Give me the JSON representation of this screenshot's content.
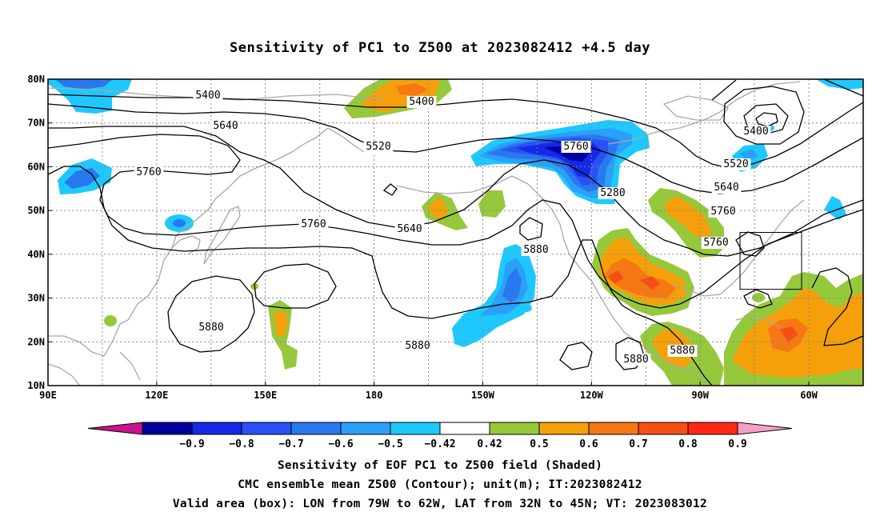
{
  "title": "Sensitivity of PC1 to Z500 at 2023082412 +4.5 day",
  "map": {
    "lon_range_deg_east": [
      90,
      315
    ],
    "lat_range": [
      10,
      80
    ],
    "lat_labels": [
      "80N",
      "70N",
      "60N",
      "50N",
      "40N",
      "30N",
      "20N",
      "10N"
    ],
    "lon_labels": [
      "90E",
      "120E",
      "150E",
      "180",
      "150W",
      "120W",
      "90W",
      "60W"
    ],
    "contour_labels": [
      "5400",
      "5400",
      "5640",
      "5520",
      "5760",
      "5760",
      "5760",
      "5880",
      "5280",
      "5400",
      "5520",
      "5640",
      "5760",
      "5640",
      "5760",
      "5880",
      "5880",
      "5880",
      "5880"
    ],
    "valid_box": {
      "lon_w": 79,
      "lon_e": 62,
      "lat_s": 32,
      "lat_n": 45
    },
    "colors": {
      "contour": "#000000",
      "coast": "#a8a8a8",
      "grid": "#888888",
      "neg_090": "#0000a0",
      "neg_080": "#1428e6",
      "neg_070": "#2a50f5",
      "neg_060": "#2878f0",
      "neg_050": "#2aa0f8",
      "neg_042": "#1ec8ff",
      "pos_042": "#96c83c",
      "pos_050": "#f5a00a",
      "pos_060": "#f57814",
      "pos_070": "#f55014",
      "pos_080": "#ff2814",
      "pos_090": "#f5a0c8"
    }
  },
  "colorbar": {
    "labels": [
      "-0.9",
      "-0.8",
      "-0.7",
      "-0.6",
      "-0.5",
      "-0.42",
      "0.42",
      "0.5",
      "0.6",
      "0.7",
      "0.8",
      "0.9"
    ],
    "colors": [
      "#c8148c",
      "#0000a0",
      "#1428e6",
      "#2a50f5",
      "#2878f0",
      "#2aa0f8",
      "#1ec8ff",
      "#ffffff",
      "#96c83c",
      "#f5a00a",
      "#f57814",
      "#f55014",
      "#ff2814",
      "#f5a0c8"
    ]
  },
  "captions": {
    "line1": "Sensitivity of EOF PC1 to Z500 field (Shaded)",
    "line2": "CMC ensemble mean Z500 (Contour); unit(m); IT:2023082412",
    "line3": "Valid area (box): LON from 79W to 62W, LAT from 32N to 45N; VT: 2023083012"
  }
}
